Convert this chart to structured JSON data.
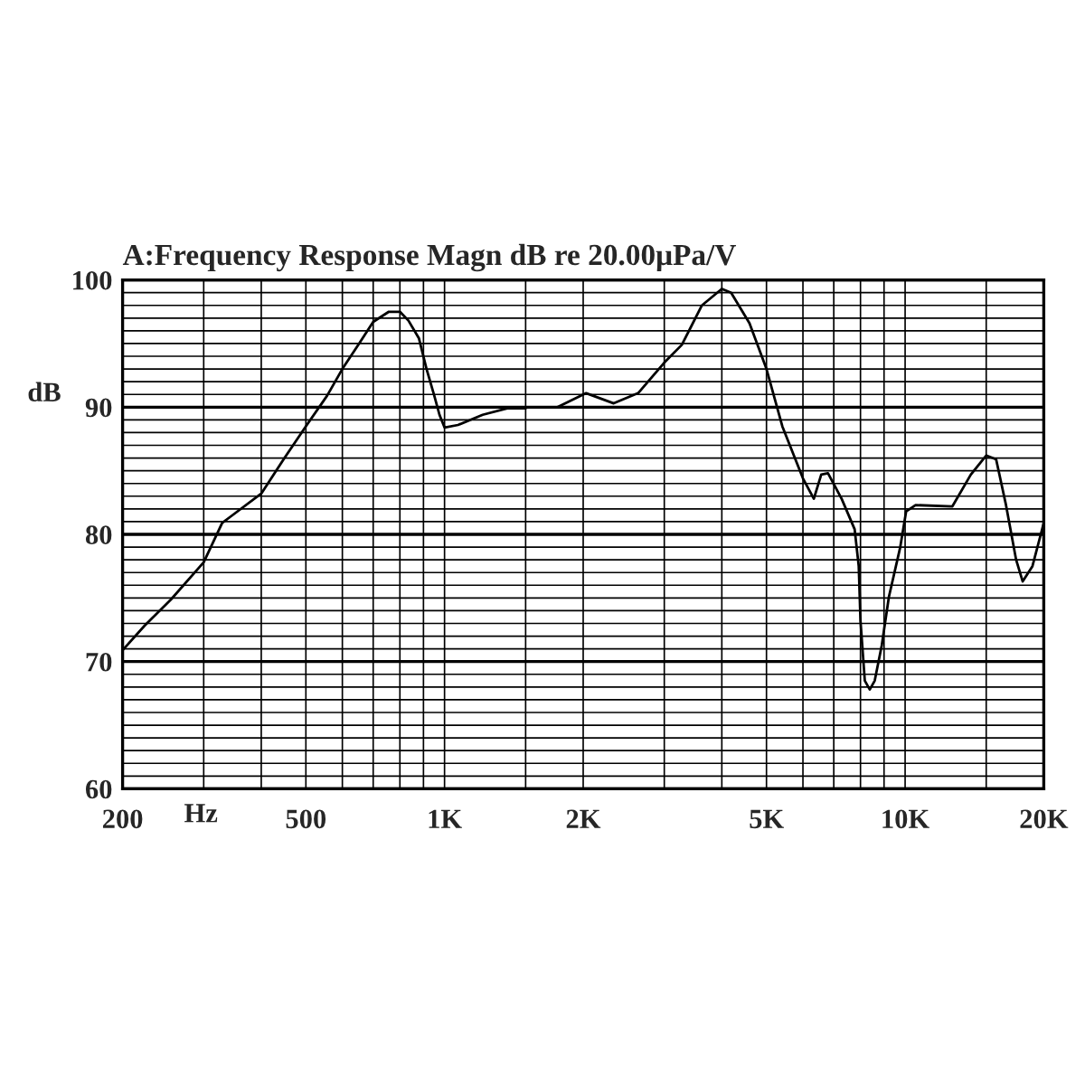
{
  "chart_data": {
    "type": "line",
    "title": "A:Frequency Response Magn dB re 20.00μPa/V",
    "xlabel": "Hz",
    "ylabel": "dB",
    "log": "x",
    "grid": true,
    "legend": false,
    "marker": "none",
    "line_style": "solid",
    "xlim": [
      200,
      20000
    ],
    "ylim": [
      60,
      100
    ],
    "xticks": [
      {
        "value": 200,
        "label": "200"
      },
      {
        "value": 300,
        "label": null
      },
      {
        "value": 400,
        "label": null
      },
      {
        "value": 500,
        "label": "500"
      },
      {
        "value": 600,
        "label": null
      },
      {
        "value": 700,
        "label": null
      },
      {
        "value": 800,
        "label": null
      },
      {
        "value": 900,
        "label": null
      },
      {
        "value": 1000,
        "label": "1K"
      },
      {
        "value": 1500,
        "label": null
      },
      {
        "value": 2000,
        "label": "2K"
      },
      {
        "value": 3000,
        "label": null
      },
      {
        "value": 4000,
        "label": null
      },
      {
        "value": 5000,
        "label": "5K"
      },
      {
        "value": 6000,
        "label": null
      },
      {
        "value": 7000,
        "label": null
      },
      {
        "value": 8000,
        "label": null
      },
      {
        "value": 9000,
        "label": null
      },
      {
        "value": 10000,
        "label": "10K"
      },
      {
        "value": 15000,
        "label": null
      },
      {
        "value": 20000,
        "label": "20K"
      }
    ],
    "yticks": [
      60,
      {
        "value": 61,
        "label": null
      },
      {
        "value": 62,
        "label": null
      },
      {
        "value": 63,
        "label": null
      },
      {
        "value": 64,
        "label": null
      },
      {
        "value": 65,
        "label": null
      },
      {
        "value": 66,
        "label": null
      },
      {
        "value": 67,
        "label": null
      },
      {
        "value": 68,
        "label": null
      },
      {
        "value": 69,
        "label": null
      },
      70,
      {
        "value": 71,
        "label": null
      },
      {
        "value": 72,
        "label": null
      },
      {
        "value": 73,
        "label": null
      },
      {
        "value": 74,
        "label": null
      },
      {
        "value": 75,
        "label": null
      },
      {
        "value": 76,
        "label": null
      },
      {
        "value": 77,
        "label": null
      },
      {
        "value": 78,
        "label": null
      },
      {
        "value": 79,
        "label": null
      },
      80,
      {
        "value": 81,
        "label": null
      },
      {
        "value": 82,
        "label": null
      },
      {
        "value": 83,
        "label": null
      },
      {
        "value": 84,
        "label": null
      },
      {
        "value": 85,
        "label": null
      },
      {
        "value": 86,
        "label": null
      },
      {
        "value": 87,
        "label": null
      },
      {
        "value": 88,
        "label": null
      },
      {
        "value": 89,
        "label": null
      },
      90,
      {
        "value": 91,
        "label": null
      },
      {
        "value": 92,
        "label": null
      },
      {
        "value": 93,
        "label": null
      },
      {
        "value": 94,
        "label": null
      },
      {
        "value": 95,
        "label": null
      },
      {
        "value": 96,
        "label": null
      },
      {
        "value": 97,
        "label": null
      },
      {
        "value": 98,
        "label": null
      },
      {
        "value": 99,
        "label": null
      },
      100
    ],
    "x": [
      200,
      223,
      255,
      300,
      329,
      400,
      451,
      500,
      556,
      600,
      650,
      700,
      757,
      800,
      835,
      880,
      914,
      950,
      975,
      1000,
      1070,
      1210,
      1368,
      1455,
      1500,
      1630,
      1759,
      2030,
      2330,
      2632,
      3000,
      3275,
      3621,
      4000,
      4190,
      4593,
      5000,
      5412,
      6000,
      6336,
      6575,
      6800,
      7280,
      7770,
      7930,
      8000,
      8175,
      8380,
      8590,
      8900,
      9222,
      9760,
      10050,
      10537,
      12665,
      13890,
      15000,
      15760,
      16560,
      17420,
      18000,
      18900,
      20000
    ],
    "series": [
      {
        "color": "#000000",
        "values": [
          70.9,
          72.8,
          74.9,
          77.8,
          80.9,
          83.2,
          86.1,
          88.5,
          90.9,
          93.0,
          94.9,
          96.7,
          97.5,
          97.5,
          96.8,
          95.4,
          93.0,
          90.9,
          89.4,
          88.4,
          88.6,
          89.4,
          89.9,
          89.9,
          89.9,
          null,
          90.0,
          91.1,
          90.3,
          91.1,
          93.5,
          94.9,
          98.0,
          99.3,
          99.0,
          96.6,
          93.0,
          88.5,
          84.4,
          82.8,
          84.7,
          84.8,
          82.8,
          80.4,
          77.5,
          73.2,
          68.5,
          67.8,
          68.5,
          71.3,
          75.1,
          79.0,
          81.8,
          82.3,
          82.2,
          84.7,
          86.2,
          85.9,
          82.3,
          78.0,
          76.3,
          77.5,
          80.9
        ]
      }
    ]
  }
}
